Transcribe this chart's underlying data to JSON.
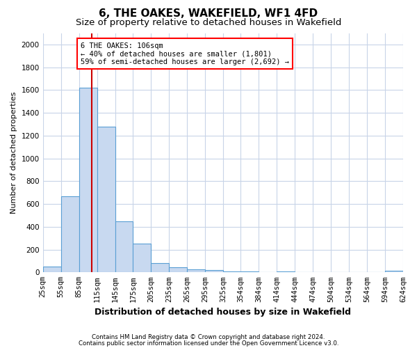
{
  "title1": "6, THE OAKES, WAKEFIELD, WF1 4FD",
  "title2": "Size of property relative to detached houses in Wakefield",
  "xlabel": "Distribution of detached houses by size in Wakefield",
  "ylabel": "Number of detached properties",
  "bar_color": "#c8d9f0",
  "bar_edge_color": "#5a9fd4",
  "annotation_text": "6 THE OAKES: 106sqm\n← 40% of detached houses are smaller (1,801)\n59% of semi-detached houses are larger (2,692) →",
  "vline_x": 106,
  "vline_color": "#cc0000",
  "footnote1": "Contains HM Land Registry data © Crown copyright and database right 2024.",
  "footnote2": "Contains public sector information licensed under the Open Government Licence v3.0.",
  "bin_edges": [
    25,
    55,
    85,
    115,
    145,
    175,
    205,
    235,
    265,
    295,
    325,
    354,
    384,
    414,
    444,
    474,
    504,
    534,
    564,
    594,
    624
  ],
  "bar_heights": [
    50,
    670,
    1620,
    1280,
    450,
    250,
    80,
    45,
    25,
    20,
    10,
    5,
    3,
    5,
    2,
    1,
    1,
    0,
    0,
    15
  ],
  "ylim": [
    0,
    2100
  ],
  "yticks": [
    0,
    200,
    400,
    600,
    800,
    1000,
    1200,
    1400,
    1600,
    1800,
    2000
  ],
  "bg_color": "#ffffff",
  "grid_color": "#c8d4e8",
  "title1_fontsize": 11,
  "title2_fontsize": 9.5,
  "xlabel_fontsize": 9,
  "ylabel_fontsize": 8,
  "tick_fontsize": 7.5,
  "annot_fontsize": 7.5
}
